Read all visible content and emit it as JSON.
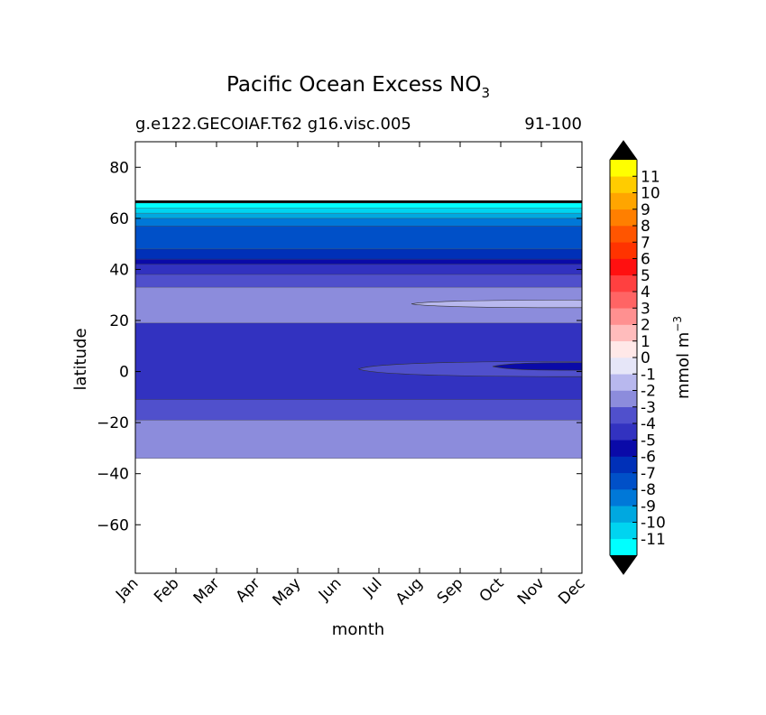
{
  "chart_data": {
    "type": "heatmap",
    "title": "Pacific Ocean Excess NO",
    "title_subscript": "3",
    "subtitle_left": "g.e122.GECOIAF.T62 g16.visc.005",
    "subtitle_right": "91-100",
    "xlabel": "month",
    "ylabel": "latitude",
    "x_ticks": [
      "Jan",
      "Feb",
      "Mar",
      "Apr",
      "May",
      "Jun",
      "Jul",
      "Aug",
      "Sep",
      "Oct",
      "Nov",
      "Dec"
    ],
    "y_ticks": [
      80,
      60,
      40,
      20,
      0,
      -20,
      -40,
      -60
    ],
    "y_tick_labels": [
      "80",
      "60",
      "40",
      "20",
      "0",
      "−20",
      "−40",
      "−60"
    ],
    "xlim": [
      1,
      12
    ],
    "ylim": [
      -79,
      90
    ],
    "data_lat_range": [
      -34,
      67
    ],
    "colorbar": {
      "label": "mmol m",
      "label_superscript": "−3",
      "levels": [
        "-11",
        "-10",
        "-9",
        "-8",
        "-7",
        "-6",
        "-5",
        "-4",
        "-3",
        "-2",
        "-1",
        "0",
        "1",
        "2",
        "3",
        "4",
        "5",
        "6",
        "7",
        "8",
        "9",
        "10",
        "11"
      ],
      "colors": [
        "#00ffff",
        "#00d4f0",
        "#00a8e0",
        "#0078d8",
        "#0050c8",
        "#0030b8",
        "#0a0aa8",
        "#3232c0",
        "#5050cc",
        "#8c8cdc",
        "#b8b8ee",
        "#e6e6f8",
        "#ffe8e8",
        "#ffbcbc",
        "#ff9090",
        "#ff6464",
        "#ff4040",
        "#ff1010",
        "#ff3300",
        "#ff5500",
        "#ff7f00",
        "#ffa500",
        "#ffcc00",
        "#ffff00"
      ],
      "extend_colors": [
        "#000000",
        "#000000"
      ]
    },
    "bands": [
      {
        "lat": [
          -34,
          -19
        ],
        "level": "-2",
        "color": "#8c8cdc"
      },
      {
        "lat": [
          -19,
          -11
        ],
        "level": "-3",
        "color": "#5050cc"
      },
      {
        "lat": [
          -11,
          19
        ],
        "level": "-4",
        "color": "#3232c0"
      },
      {
        "lat": [
          19,
          33
        ],
        "level": "-2",
        "color": "#8c8cdc"
      },
      {
        "lat": [
          33,
          38
        ],
        "level": "-3",
        "color": "#5050cc"
      },
      {
        "lat": [
          38,
          42
        ],
        "level": "-4",
        "color": "#3232c0"
      },
      {
        "lat": [
          42,
          44
        ],
        "level": "-5",
        "color": "#0a0aa8"
      },
      {
        "lat": [
          44,
          48
        ],
        "level": "-6",
        "color": "#0030b8"
      },
      {
        "lat": [
          48,
          57
        ],
        "level": "-7",
        "color": "#0050c8"
      },
      {
        "lat": [
          57,
          60
        ],
        "level": "-8",
        "color": "#0078d8"
      },
      {
        "lat": [
          60,
          62
        ],
        "level": "-9",
        "color": "#00a8e0"
      },
      {
        "lat": [
          62,
          64
        ],
        "level": "-10",
        "color": "#00d4f0"
      },
      {
        "lat": [
          64,
          66
        ],
        "level": "-11",
        "color": "#00ffff"
      },
      {
        "lat": [
          66,
          67
        ],
        "level": "below -11",
        "color": "#000000"
      }
    ],
    "features": [
      {
        "level": "-1",
        "color": "#b8b8ee",
        "months": [
          7.8,
          12
        ],
        "lat": [
          25,
          28
        ]
      },
      {
        "level": "-3",
        "color": "#5050cc",
        "months": [
          6.5,
          12
        ],
        "lat": [
          -2,
          4
        ]
      },
      {
        "level": "-5",
        "color": "#0a0aa8",
        "months": [
          9.8,
          12
        ],
        "lat": [
          0.5,
          3.5
        ]
      }
    ]
  }
}
